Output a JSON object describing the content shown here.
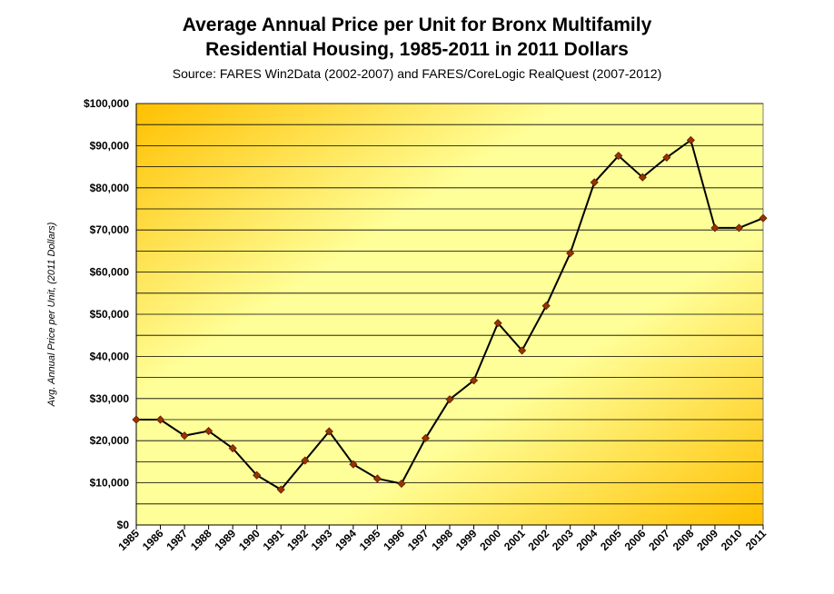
{
  "chart_data": {
    "type": "line",
    "title_line1": "Average Annual Price per Unit for Bronx Multifamily",
    "title_line2": "Residential Housing, 1985-2011 in 2011 Dollars",
    "subtitle": "Source: FARES Win2Data (2002-2007) and FARES/CoreLogic RealQuest (2007-2012)",
    "xlabel": "",
    "ylabel": "Avg. Annual Price per Unit, (2011 Dollars)",
    "ylim": [
      0,
      100000
    ],
    "y_ticks": [
      "$0",
      "$10,000",
      "$20,000",
      "$30,000",
      "$40,000",
      "$50,000",
      "$60,000",
      "$70,000",
      "$80,000",
      "$90,000",
      "$100,000"
    ],
    "x": [
      "1985",
      "1986",
      "1987",
      "1988",
      "1989",
      "1990",
      "1991",
      "1992",
      "1993",
      "1994",
      "1995",
      "1996",
      "1997",
      "1998",
      "1999",
      "2000",
      "2001",
      "2002",
      "2003",
      "2004",
      "2005",
      "2006",
      "2007",
      "2008",
      "2009",
      "2010",
      "2011"
    ],
    "series": [
      {
        "values": [
          25000,
          25000,
          21200,
          22300,
          18200,
          11800,
          8400,
          15300,
          22200,
          14400,
          11000,
          9800,
          20600,
          29800,
          34300,
          47900,
          41400,
          52000,
          64500,
          81300,
          87600,
          82500,
          87200,
          91300,
          70500,
          70500,
          72800
        ]
      }
    ],
    "grid": true,
    "legend": "none",
    "colors": {
      "line": "#000000",
      "marker": "#993300",
      "marker_edge": "#5a1e00",
      "plot_bg_light": "#ffff99",
      "plot_bg_dark": "#ffc000",
      "grid": "#000000"
    }
  }
}
